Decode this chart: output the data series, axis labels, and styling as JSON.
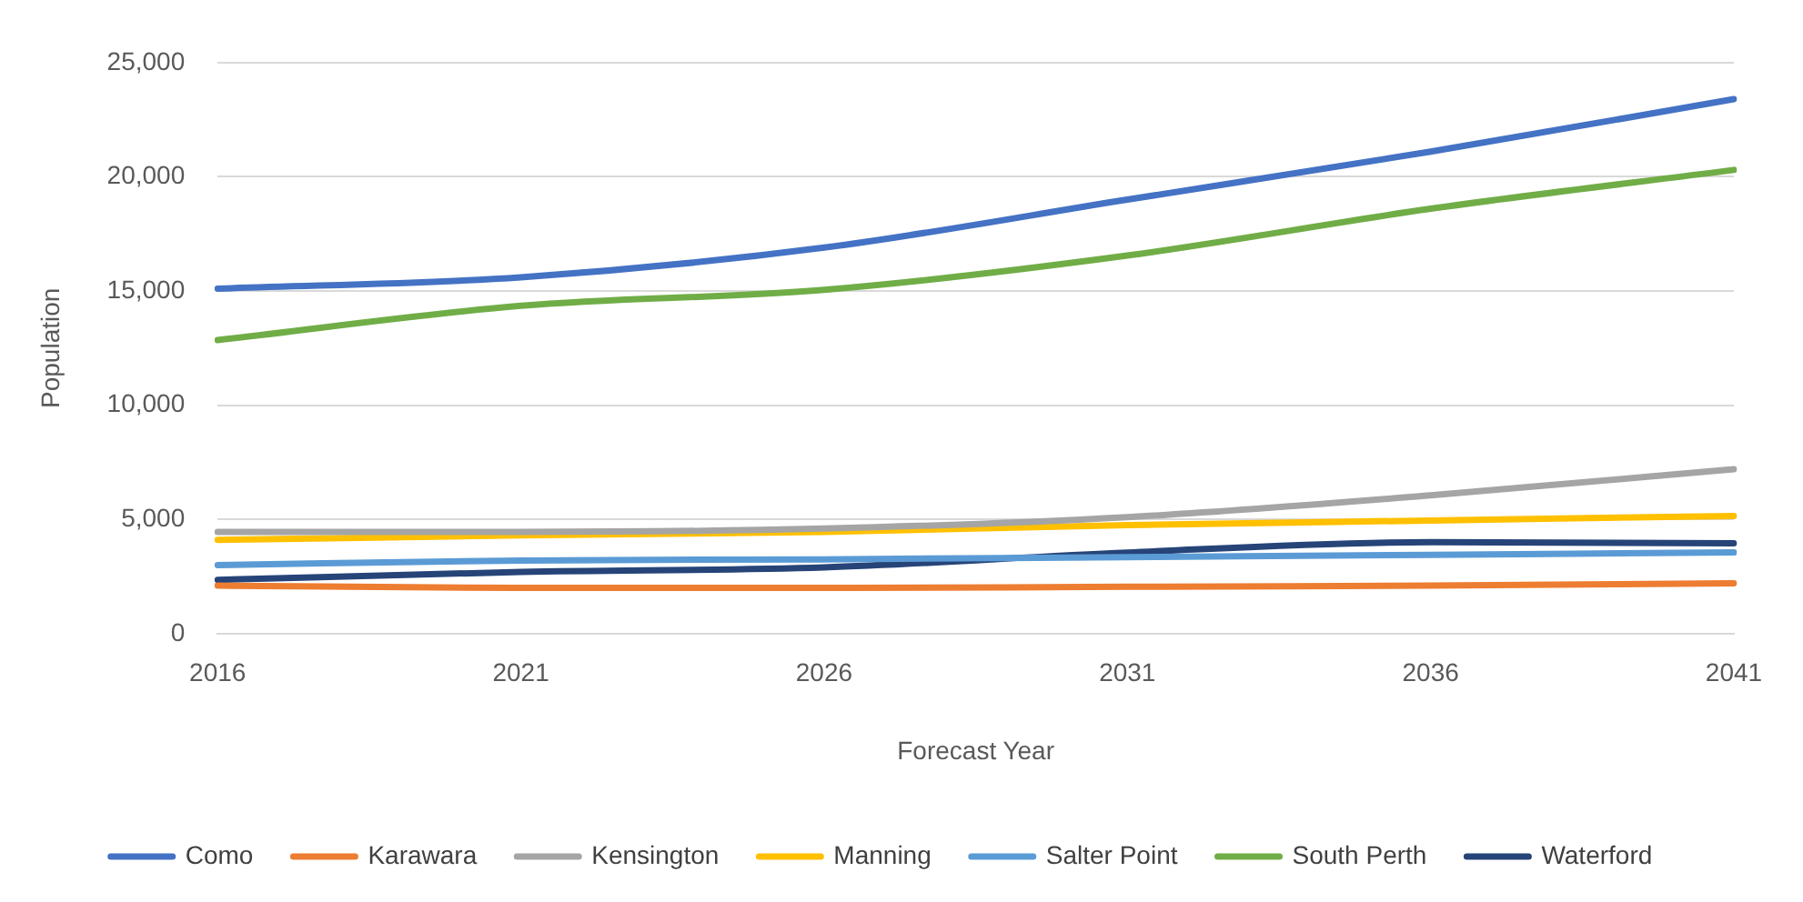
{
  "chart_data": {
    "type": "line",
    "xlabel": "Forecast Year",
    "ylabel": "Population",
    "categories": [
      "2016",
      "2021",
      "2026",
      "2031",
      "2036",
      "2041"
    ],
    "ylim": [
      0,
      25000
    ],
    "yticks": [
      {
        "value": 0,
        "label": "0"
      },
      {
        "value": 5000,
        "label": "5,000"
      },
      {
        "value": 10000,
        "label": "10,000"
      },
      {
        "value": 15000,
        "label": "15,000"
      },
      {
        "value": 20000,
        "label": "20,000"
      },
      {
        "value": 25000,
        "label": "25,000"
      }
    ],
    "grid": "y",
    "legend": "bottom",
    "marker": "none",
    "line_style": "solid",
    "series": [
      {
        "name": "Como",
        "color": "#4472c4",
        "values": [
          15100,
          15600,
          16900,
          19000,
          21100,
          23400
        ]
      },
      {
        "name": "Karawara",
        "color": "#ed7d31",
        "values": [
          2100,
          2000,
          2000,
          2050,
          2100,
          2200
        ]
      },
      {
        "name": "Kensington",
        "color": "#a5a5a5",
        "values": [
          4450,
          4450,
          4600,
          5100,
          6050,
          7200
        ]
      },
      {
        "name": "Manning",
        "color": "#ffc000",
        "values": [
          4100,
          4300,
          4450,
          4750,
          4950,
          5150
        ]
      },
      {
        "name": "Salter Point",
        "color": "#5b9bd5",
        "values": [
          3000,
          3200,
          3250,
          3350,
          3450,
          3550
        ]
      },
      {
        "name": "South Perth",
        "color": "#70ad47",
        "values": [
          12850,
          14350,
          15050,
          16550,
          18600,
          20300
        ]
      },
      {
        "name": "Waterford",
        "color": "#264478",
        "values": [
          2350,
          2700,
          2900,
          3550,
          4000,
          3950
        ]
      }
    ]
  }
}
